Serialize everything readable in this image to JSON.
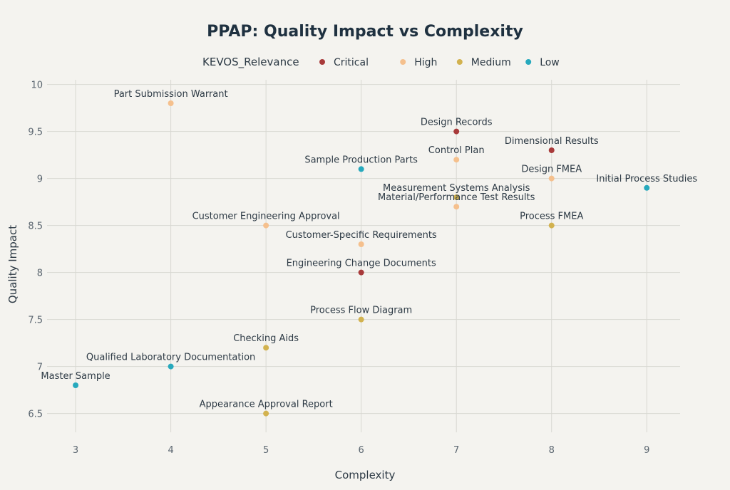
{
  "chart_data": {
    "type": "scatter",
    "title": "PPAP: Quality Impact vs Complexity",
    "xlabel": "Complexity",
    "ylabel": "Quality Impact",
    "xlim": [
      2.7,
      9.35
    ],
    "ylim": [
      6.3,
      10.05
    ],
    "x_ticks": [
      3,
      4,
      5,
      6,
      7,
      8,
      9
    ],
    "y_ticks": [
      6.5,
      7,
      7.5,
      8,
      8.5,
      9,
      9.5,
      10
    ],
    "grid": true,
    "legend": {
      "title": "KEVOS_Relevance",
      "placement": "top-center",
      "entries": [
        {
          "name": "Critical",
          "color": "#a83a3a"
        },
        {
          "name": "High",
          "color": "#f5c08d"
        },
        {
          "name": "Medium",
          "color": "#d2b24f"
        },
        {
          "name": "Low",
          "color": "#27a9bd"
        }
      ]
    },
    "points": [
      {
        "label": "Part Submission Warrant",
        "x": 4,
        "y": 9.8,
        "category": "High"
      },
      {
        "label": "Design Records",
        "x": 7,
        "y": 9.5,
        "category": "Critical"
      },
      {
        "label": "Dimensional Results",
        "x": 8,
        "y": 9.3,
        "category": "Critical"
      },
      {
        "label": "Control Plan",
        "x": 7,
        "y": 9.2,
        "category": "High"
      },
      {
        "label": "Sample Production Parts",
        "x": 6,
        "y": 9.1,
        "category": "Low"
      },
      {
        "label": "Design FMEA",
        "x": 8,
        "y": 9.0,
        "category": "High"
      },
      {
        "label": "Initial Process Studies",
        "x": 9,
        "y": 8.9,
        "category": "Low"
      },
      {
        "label": "Measurement Systems Analysis",
        "x": 7,
        "y": 8.8,
        "category": "Medium"
      },
      {
        "label": "Material/Performance Test Results",
        "x": 7,
        "y": 8.7,
        "category": "High"
      },
      {
        "label": "Customer Engineering Approval",
        "x": 5,
        "y": 8.5,
        "category": "High"
      },
      {
        "label": "Process FMEA",
        "x": 8,
        "y": 8.5,
        "category": "Medium"
      },
      {
        "label": "Customer-Specific Requirements",
        "x": 6,
        "y": 8.3,
        "category": "High"
      },
      {
        "label": "Engineering Change Documents",
        "x": 6,
        "y": 8.0,
        "category": "Critical"
      },
      {
        "label": "Process Flow Diagram",
        "x": 6,
        "y": 7.5,
        "category": "Medium"
      },
      {
        "label": "Checking Aids",
        "x": 5,
        "y": 7.2,
        "category": "Medium"
      },
      {
        "label": "Qualified Laboratory Documentation",
        "x": 4,
        "y": 7.0,
        "category": "Low"
      },
      {
        "label": "Master Sample",
        "x": 3,
        "y": 6.8,
        "category": "Low"
      },
      {
        "label": "Appearance Approval Report",
        "x": 5,
        "y": 6.5,
        "category": "Medium"
      }
    ]
  }
}
